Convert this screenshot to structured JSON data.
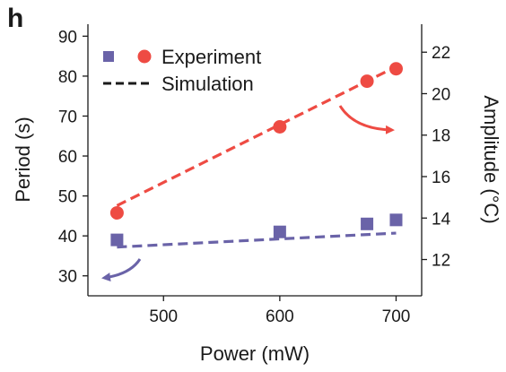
{
  "panel_label": "h",
  "chart_data": {
    "type": "scatter",
    "xlabel": "Power (mW)",
    "ylabel_left": "Period (s)",
    "ylabel_right": "Amplitude (°C)",
    "xlim": [
      435,
      722
    ],
    "ylim_left": [
      25,
      93
    ],
    "ylim_right": [
      10.25,
      23.35
    ],
    "xticks": [
      500,
      600,
      700
    ],
    "yticks_left": [
      30,
      40,
      50,
      60,
      70,
      80,
      90
    ],
    "yticks_right": [
      12,
      14,
      16,
      18,
      20,
      22
    ],
    "grid": false,
    "legend_position": "top-left",
    "legend": {
      "experiment_label": "Experiment",
      "simulation_label": "Simulation"
    },
    "series": [
      {
        "kind": "experiment",
        "axis": "left",
        "marker": "square",
        "color": "#6a63a8",
        "x": [
          460,
          600,
          675,
          700
        ],
        "y": [
          39,
          41,
          43,
          44
        ]
      },
      {
        "kind": "simulation",
        "axis": "left",
        "style": "dashed",
        "color": "#6a63a8",
        "x": [
          460,
          700
        ],
        "y": [
          37.2,
          40.7
        ]
      },
      {
        "kind": "experiment",
        "axis": "right",
        "marker": "circle",
        "color": "#ee4b43",
        "x": [
          460,
          600,
          675,
          700
        ],
        "y": [
          14.25,
          18.4,
          20.6,
          21.2
        ]
      },
      {
        "kind": "simulation",
        "axis": "right",
        "style": "dashed",
        "color": "#ee4b43",
        "x": [
          460,
          700
        ],
        "y": [
          14.6,
          21.3
        ]
      }
    ]
  }
}
